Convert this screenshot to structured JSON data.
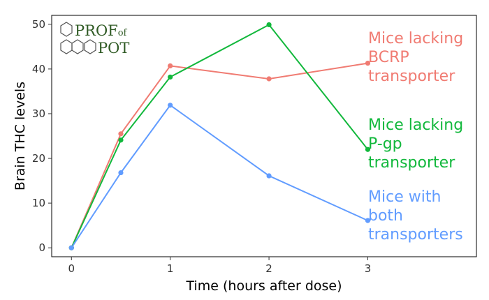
{
  "chart_data": {
    "type": "line",
    "xlabel": "Time (hours after dose)",
    "ylabel": "Brain THC levels",
    "xlim": [
      -0.2,
      4.1
    ],
    "ylim": [
      -2,
      52
    ],
    "x_ticks": [
      0,
      1,
      2,
      3
    ],
    "y_ticks": [
      0,
      10,
      20,
      30,
      40,
      50
    ],
    "grid": false,
    "legend": "direct labels at right end of lines",
    "series": [
      {
        "name": "Mice lacking BCRP transporter",
        "label_lines": [
          "Mice lacking",
          "BCRP",
          "transporter"
        ],
        "color": "#F07B72",
        "x": [
          0,
          0.5,
          1,
          2,
          3
        ],
        "y": [
          0,
          25.5,
          40.7,
          37.8,
          41.3
        ]
      },
      {
        "name": "Mice lacking P-gp transporter",
        "label_lines": [
          "Mice lacking",
          "P-gp",
          "transporter"
        ],
        "color": "#12B83C",
        "x": [
          0,
          0.5,
          1,
          2,
          3
        ],
        "y": [
          0,
          24.1,
          38.2,
          49.9,
          22.0
        ]
      },
      {
        "name": "Mice with both transporters",
        "label_lines": [
          "Mice with",
          "both",
          "transporters"
        ],
        "color": "#619CFF",
        "x": [
          0,
          0.5,
          1,
          2,
          3
        ],
        "y": [
          0,
          16.8,
          31.9,
          16.1,
          6.1
        ]
      }
    ]
  },
  "logo": {
    "line1": "PROF",
    "line1_small": "of",
    "line2": "POT",
    "color": "#2f5a24"
  }
}
